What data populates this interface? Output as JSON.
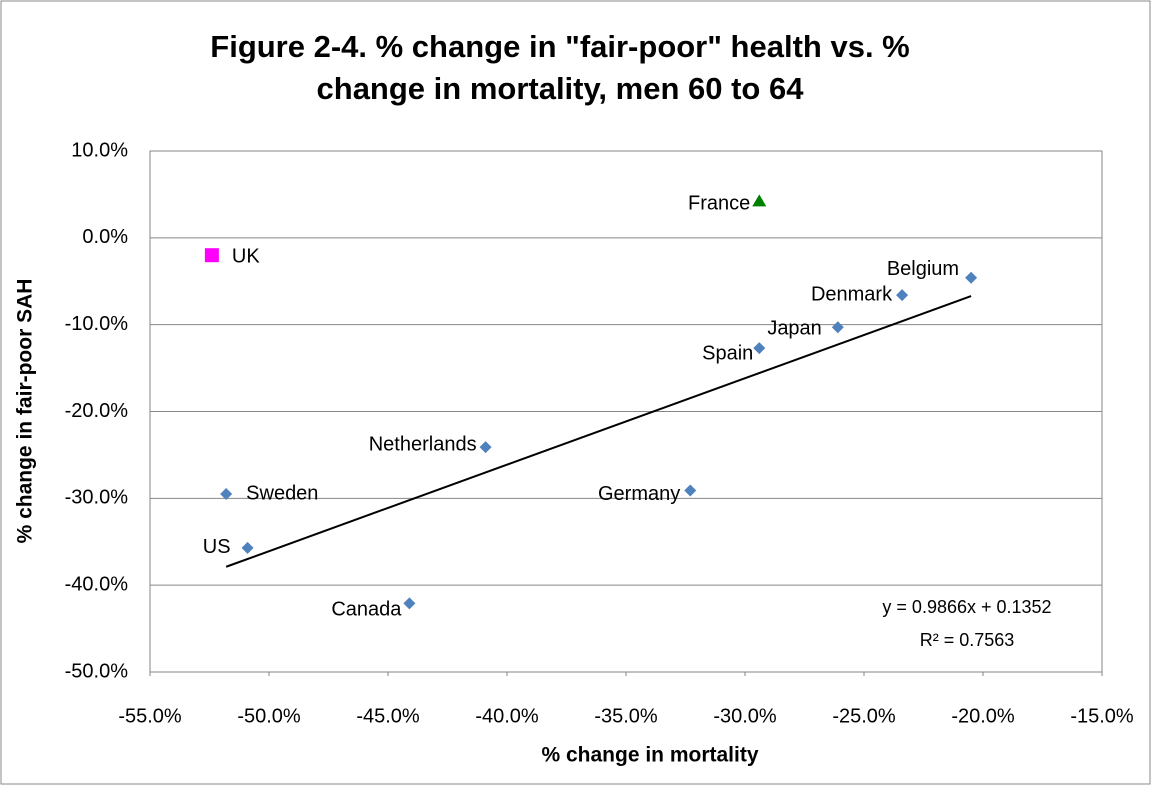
{
  "chart_data": {
    "type": "scatter",
    "title": [
      "Figure 2-4.  % change in \"fair-poor\" health vs. %",
      "change in mortality, men 60 to 64"
    ],
    "x_label": "% change in mortality",
    "y_label": "% change in fair-poor SAH",
    "xlim": [
      -55,
      -15
    ],
    "ylim": [
      -50,
      10
    ],
    "xticks": [
      {
        "value": -55,
        "label": "-55.0%"
      },
      {
        "value": -50,
        "label": "-50.0%"
      },
      {
        "value": -45,
        "label": "-45.0%"
      },
      {
        "value": -40,
        "label": "-40.0%"
      },
      {
        "value": -35,
        "label": "-35.0%"
      },
      {
        "value": -30,
        "label": "-30.0%"
      },
      {
        "value": -25,
        "label": "-25.0%"
      },
      {
        "value": -20,
        "label": "-20.0%"
      },
      {
        "value": -15,
        "label": "-15.0%"
      }
    ],
    "yticks": [
      {
        "value": 10,
        "label": "10.0%"
      },
      {
        "value": 0,
        "label": "0.0%"
      },
      {
        "value": -10,
        "label": "-10.0%"
      },
      {
        "value": -20,
        "label": "-20.0%"
      },
      {
        "value": -30,
        "label": "-30.0%"
      },
      {
        "value": -40,
        "label": "-40.0%"
      },
      {
        "value": -50,
        "label": "-50.0%"
      }
    ],
    "grid": true,
    "series": [
      {
        "color": "#4f81bd",
        "marker": "diamond",
        "trendline": true,
        "labels": [
          "Belgium",
          "Denmark",
          "Japan",
          "Spain",
          "Netherlands",
          "Germany",
          "Sweden",
          "US",
          "Canada"
        ],
        "x": [
          -20.5,
          -23.4,
          -26.1,
          -29.4,
          -40.9,
          -32.3,
          -51.8,
          -50.9,
          -44.1
        ],
        "values": [
          -4.6,
          -6.6,
          -10.3,
          -12.7,
          -24.1,
          -29.1,
          -29.5,
          -35.7,
          -42.1
        ]
      },
      {
        "color": "#008000",
        "marker": "triangle",
        "labels": [
          "France"
        ],
        "x": [
          -29.4
        ],
        "values": [
          4.2
        ]
      },
      {
        "color": "#ff00ff",
        "marker": "square",
        "labels": [
          "UK"
        ],
        "x": [
          -52.4
        ],
        "values": [
          -2.0
        ]
      }
    ],
    "trendline_equation": "y = 0.9866x + 0.1352",
    "trendline_r2": "R² = 0.7563"
  }
}
